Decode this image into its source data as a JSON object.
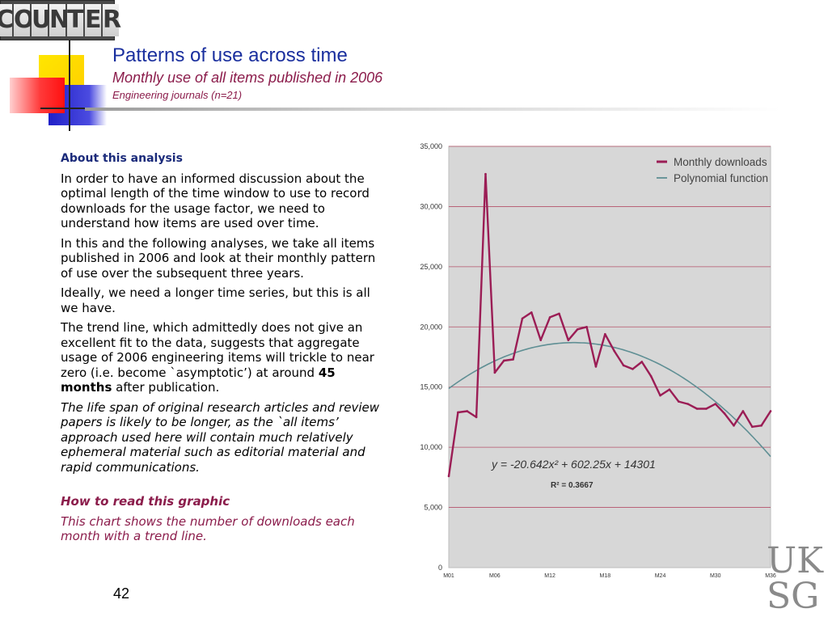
{
  "logo": {
    "letters": [
      "C",
      "O",
      "U",
      "N",
      "T",
      "E",
      "R"
    ]
  },
  "header": {
    "title": "Patterns of use across time",
    "subtitle": "Monthly use of all items published in 2006",
    "subsubtitle": "Engineering journals (n=21)"
  },
  "body": {
    "heading": "About this analysis",
    "p1": "In order to have an informed discussion about the optimal length of the time window to use to record downloads for the usage factor, we need to understand how items are used over time.",
    "p2": "In this and the following analyses, we take all items published in 2006 and look at their monthly pattern of use over the subsequent three years.",
    "p3": "Ideally, we need a longer time series, but this is all we have.",
    "p4_a": "The trend line, which admittedly does not give an excellent fit to the data, suggests that aggregate usage of 2006 engineering items will trickle to near zero (i.e. become `asymptotic’) at around ",
    "p4_bold": "45 months",
    "p4_b": " after publication.",
    "p5": "The life span of original research articles and review papers is likely to be longer, as the `all items’ approach used here will contain much relatively ephemeral material such as editorial material and rapid communications.",
    "how_heading": "How to read this graphic",
    "how_text": "This chart shows the number of downloads each month with a trend line."
  },
  "page_number": "42",
  "footer_logo": {
    "line1": "UK",
    "line2": "SG"
  },
  "chart_data": {
    "type": "line",
    "x": [
      "M01",
      "M02",
      "M03",
      "M04",
      "M05",
      "M06",
      "M07",
      "M08",
      "M09",
      "M10",
      "M11",
      "M12",
      "M13",
      "M14",
      "M15",
      "M16",
      "M17",
      "M18",
      "M19",
      "M20",
      "M21",
      "M22",
      "M23",
      "M24",
      "M25",
      "M26",
      "M27",
      "M28",
      "M29",
      "M30",
      "M31",
      "M32",
      "M33",
      "M34",
      "M35",
      "M36"
    ],
    "xticks": [
      "M01",
      "M06",
      "M12",
      "M18",
      "M24",
      "M30",
      "M36"
    ],
    "yticks": [
      "0",
      "5,000",
      "10,000",
      "15,000",
      "20,000",
      "25,000",
      "30,000",
      "35,000"
    ],
    "ylim": [
      0,
      35000
    ],
    "series": [
      {
        "name": "Monthly downloads",
        "color": "#9b1d55",
        "values": [
          7600,
          12900,
          13000,
          12500,
          32700,
          16200,
          17200,
          17300,
          20700,
          21200,
          18900,
          20800,
          21100,
          18900,
          19800,
          20000,
          16700,
          19400,
          18000,
          16800,
          16500,
          17100,
          15900,
          14300,
          14800,
          13800,
          13600,
          13200,
          13200,
          13600,
          12800,
          11800,
          13000,
          11700,
          11800,
          13000
        ]
      },
      {
        "name": "Polynomial function",
        "color": "#5f8f94",
        "a": -20.642,
        "b": 602.25,
        "c": 14301
      }
    ],
    "equation": "y = -20.642x² + 602.25x + 14301",
    "r2": "R² = 0.3667",
    "legend_position": "top-right",
    "grid": true,
    "background": "#d7d7d7",
    "gridline_color": "#b5526a"
  }
}
